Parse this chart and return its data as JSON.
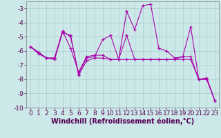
{
  "xlabel": "Windchill (Refroidissement éolien,°C)",
  "background_color": "#cce8e8",
  "grid_color": "#aacccc",
  "line_color": "#aa00aa",
  "x": [
    0,
    1,
    2,
    3,
    4,
    5,
    6,
    7,
    8,
    9,
    10,
    11,
    12,
    13,
    14,
    15,
    16,
    17,
    18,
    19,
    20,
    21,
    22,
    23
  ],
  "series1": [
    -5.7,
    -6.1,
    -6.5,
    -6.5,
    -4.6,
    -5.8,
    -7.5,
    -6.4,
    -6.3,
    -6.3,
    -6.6,
    -6.6,
    -6.6,
    -6.6,
    -6.6,
    -6.6,
    -6.6,
    -6.6,
    -6.6,
    -6.6,
    -6.6,
    -8.0,
    -8.0,
    -9.5
  ],
  "series2": [
    -5.7,
    -6.1,
    -6.5,
    -6.5,
    -4.6,
    -5.0,
    -7.6,
    -6.5,
    -6.4,
    -5.2,
    -4.9,
    -6.6,
    -3.2,
    -4.5,
    -2.8,
    -2.7,
    -5.8,
    -6.0,
    -6.5,
    -6.4,
    -4.3,
    -8.0,
    -7.9,
    -9.5
  ],
  "series3": [
    -5.7,
    -6.2,
    -6.5,
    -6.6,
    -4.7,
    -4.9,
    -7.7,
    -6.7,
    -6.5,
    -6.5,
    -6.6,
    -6.6,
    -4.9,
    -6.6,
    -6.6,
    -6.6,
    -6.6,
    -6.6,
    -6.6,
    -6.4,
    -6.4,
    -8.0,
    -8.0,
    -9.5
  ],
  "ylim": [
    -10,
    -2.5
  ],
  "xlim": [
    -0.5,
    23.5
  ],
  "yticks": [
    -10,
    -9,
    -8,
    -7,
    -6,
    -5,
    -4,
    -3
  ],
  "xticks": [
    0,
    1,
    2,
    3,
    4,
    5,
    6,
    7,
    8,
    9,
    10,
    11,
    12,
    13,
    14,
    15,
    16,
    17,
    18,
    19,
    20,
    21,
    22,
    23
  ],
  "tick_fontsize": 6.5,
  "xlabel_fontsize": 7.0,
  "figsize": [
    3.2,
    2.0
  ],
  "dpi": 100
}
